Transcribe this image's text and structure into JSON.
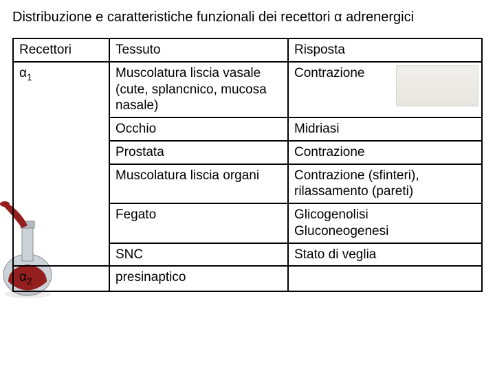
{
  "title": "Distribuzione e caratteristiche funzionali dei recettori α  adrenergici",
  "headers": {
    "c1": "Recettori",
    "c2": "Tessuto",
    "c3": "Risposta"
  },
  "rows": [
    {
      "c1": "α1",
      "c2": "Muscolatura liscia vasale (cute, splancnico, mucosa nasale)",
      "c3": "Contrazione",
      "sub1": true,
      "img": true
    },
    {
      "c1": "",
      "c2": "Occhio",
      "c3": "Midriasi"
    },
    {
      "c1": "",
      "c2": "Prostata",
      "c3": "Contrazione"
    },
    {
      "c1": "",
      "c2": "Muscolatura liscia organi",
      "c3": "Contrazione (sfinteri), rilassamento (pareti)"
    },
    {
      "c1": "",
      "c2": "Fegato",
      "c3": "Glicogenolisi\nGluconeogenesi"
    },
    {
      "c1": "",
      "c2": "SNC",
      "c3": "Stato di veglia"
    },
    {
      "c1": "α2",
      "c2": "presinaptico",
      "c3": "",
      "sub1": true
    }
  ],
  "colors": {
    "flask_liquid": "#8f1414",
    "flask_glass": "#c9d0d6"
  }
}
